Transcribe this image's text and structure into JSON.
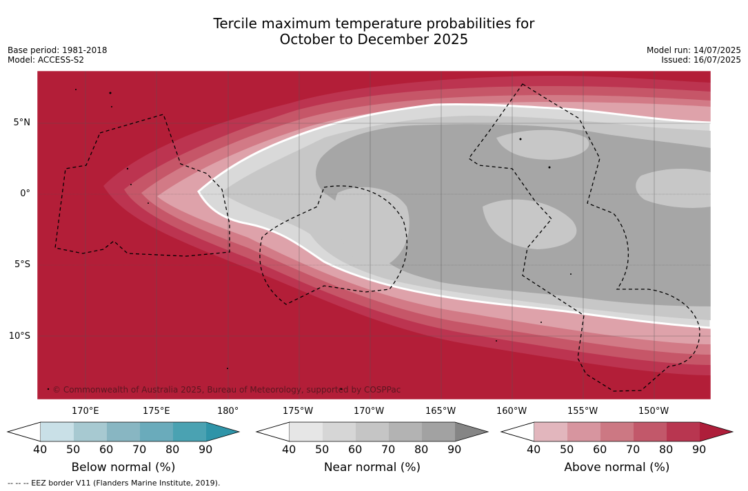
{
  "header": {
    "title_line1": "Tercile maximum temperature probabilities for",
    "title_line2": "October to December 2025",
    "base_period": "Base period: 1981-2018",
    "model": "Model: ACCESS-S2",
    "model_run": "Model run: 14/07/2025",
    "issued": "Issued: 16/07/2025"
  },
  "map": {
    "lat_labels": [
      "5°N",
      "0°",
      "5°S",
      "10°S"
    ],
    "lon_labels": [
      "170°E",
      "175°E",
      "180°",
      "175°W",
      "170°W",
      "165°W",
      "160°W",
      "155°W",
      "150°W"
    ],
    "copyright": "© Commonwealth of Australia 2025, Bureau of Meteorology, supported by COSPPac",
    "fill_above_color": "#b31e38",
    "near_colors": [
      "#d9d9d9",
      "#c6c6c6",
      "#a6a6a6"
    ]
  },
  "legends": [
    {
      "label": "Below normal (%)",
      "ticks": [
        "40",
        "50",
        "60",
        "70",
        "80",
        "90"
      ],
      "colors": [
        "#c9e0e7",
        "#a7c9d1",
        "#88b6c2",
        "#6aabbb",
        "#4aa2b2",
        "#2f94a8"
      ]
    },
    {
      "label": "Near normal (%)",
      "ticks": [
        "40",
        "50",
        "60",
        "70",
        "80",
        "90"
      ],
      "colors": [
        "#e6e6e6",
        "#d6d6d6",
        "#c5c5c5",
        "#b3b3b3",
        "#a2a2a2",
        "#858585"
      ]
    },
    {
      "label": "Above normal (%)",
      "ticks": [
        "40",
        "50",
        "60",
        "70",
        "80",
        "90"
      ],
      "colors": [
        "#e2b6bd",
        "#d7959f",
        "#cc7883",
        "#c2586a",
        "#b83650",
        "#ae1e3a"
      ]
    }
  ],
  "footer": {
    "eez_note": "--  --  -- EEZ border V11 (Flanders Marine Institute, 2019)."
  }
}
